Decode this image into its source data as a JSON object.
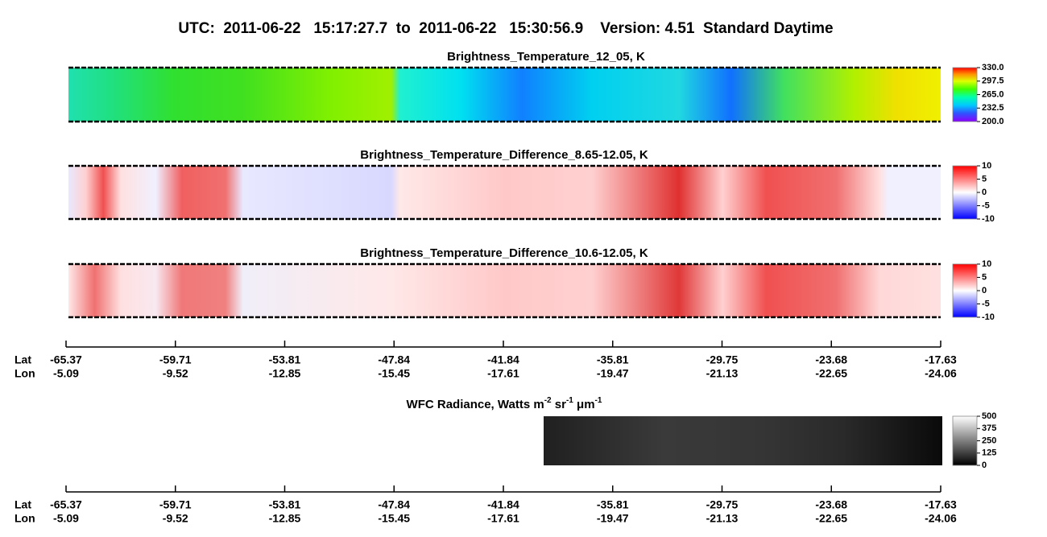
{
  "title": "UTC:  2011-06-22   15:17:27.7  to  2011-06-22   15:30:56.9    Version: 4.51  Standard Daytime",
  "panels": [
    {
      "title": "Brightness_Temperature_12_05, K",
      "colorbar": {
        "lim": [
          200,
          330
        ],
        "ticks": [
          {
            "value": 330,
            "label": "330.0"
          },
          {
            "value": 297.5,
            "label": "297.5"
          },
          {
            "value": 265,
            "label": "265.0"
          },
          {
            "value": 232.5,
            "label": "232.5"
          },
          {
            "value": 200,
            "label": "200.0"
          }
        ]
      }
    },
    {
      "title": "Brightness_Temperature_Difference_8.65-12.05, K",
      "colorbar": {
        "lim": [
          -10,
          10
        ],
        "ticks": [
          10,
          5,
          0,
          -5,
          -10
        ]
      }
    },
    {
      "title": "Brightness_Temperature_Difference_10.6-12.05, K",
      "colorbar": {
        "lim": [
          -10,
          10
        ],
        "ticks": [
          10,
          5,
          0,
          -5,
          -10
        ]
      }
    },
    {
      "title_parts": [
        "WFC Radiance, Watts m",
        "-2",
        " sr",
        "-1",
        " μm",
        "-1"
      ],
      "colorbar": {
        "lim": [
          0,
          500
        ],
        "ticks": [
          500,
          375,
          250,
          125,
          0
        ]
      }
    }
  ],
  "axes": [
    {
      "lat_label": "Lat",
      "lon_label": "Lon",
      "lat": [
        -65.37,
        -59.71,
        -53.81,
        -47.84,
        -41.84,
        -35.81,
        -29.75,
        -23.68,
        -17.63
      ],
      "lon": [
        -5.09,
        -9.52,
        -12.85,
        -15.45,
        -17.61,
        -19.47,
        -21.13,
        -22.65,
        -24.06
      ]
    },
    {
      "lat_label": "Lat",
      "lon_label": "Lon",
      "lat": [
        -65.37,
        -59.71,
        -53.81,
        -47.84,
        -41.84,
        -35.81,
        -29.75,
        -23.68,
        -17.63
      ],
      "lon": [
        -5.09,
        -9.52,
        -12.85,
        -15.45,
        -17.61,
        -19.47,
        -21.13,
        -22.65,
        -24.06
      ]
    }
  ]
}
